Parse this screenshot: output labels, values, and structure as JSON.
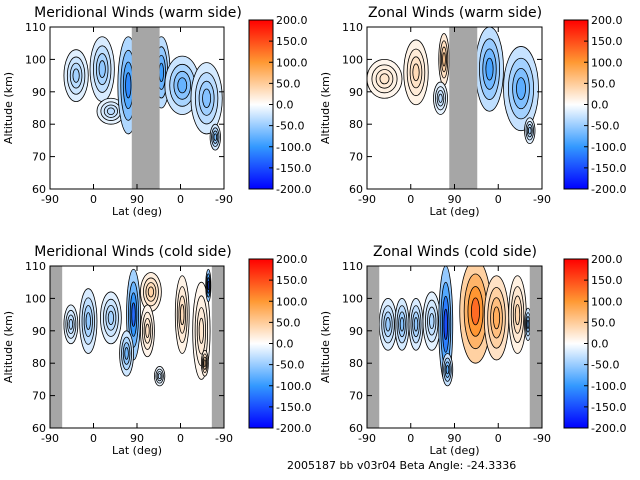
{
  "footer": "2005187 bb v03r04   Beta Angle: -24.3336",
  "colorbar": {
    "min": -200,
    "max": 200,
    "ticks": [
      "200.0",
      "150.0",
      "100.0",
      "50.0",
      "0.0",
      "-50.0",
      "-100.0",
      "-150.0",
      "-200.0"
    ],
    "colors": {
      "negative_end": "#0000ff",
      "negative_mid": "#3399ff",
      "near_zero": "#ffffff",
      "positive_mid": "#ff9933",
      "positive_end": "#ff0000",
      "gap": "#a6a6a6"
    }
  },
  "chart_data": [
    {
      "type": "heatmap",
      "title": "Meridional Winds (warm side)",
      "xlabel": "Lat (deg)",
      "ylabel": "Altitude (km)",
      "xticks": [
        "-90",
        "0",
        "90",
        "0",
        "-90"
      ],
      "yticks": [
        "60",
        "70",
        "80",
        "90",
        "100",
        "110"
      ],
      "ylim": [
        60,
        110
      ],
      "gaps": [
        [
          0.47,
          0.63
        ]
      ],
      "blobs": [
        {
          "x": 0.15,
          "alt": 95,
          "value": -45,
          "w": 0.07,
          "h": 8
        },
        {
          "x": 0.3,
          "alt": 97,
          "value": -55,
          "w": 0.07,
          "h": 10
        },
        {
          "x": 0.35,
          "alt": 84,
          "value": -35,
          "w": 0.08,
          "h": 4
        },
        {
          "x": 0.45,
          "alt": 92,
          "value": -110,
          "w": 0.06,
          "h": 15
        },
        {
          "x": 0.64,
          "alt": 96,
          "value": -95,
          "w": 0.05,
          "h": 11
        },
        {
          "x": 0.76,
          "alt": 92,
          "value": -75,
          "w": 0.1,
          "h": 9
        },
        {
          "x": 0.9,
          "alt": 88,
          "value": -60,
          "w": 0.09,
          "h": 11
        },
        {
          "x": 0.95,
          "alt": 76,
          "value": -65,
          "w": 0.03,
          "h": 4
        }
      ]
    },
    {
      "type": "heatmap",
      "title": "Zonal Winds (warm side)",
      "xlabel": "Lat (deg)",
      "ylabel": "Altitude (km)",
      "xticks": [
        "-90",
        "0",
        "90",
        "0",
        "-90"
      ],
      "yticks": [
        "60",
        "70",
        "80",
        "90",
        "100",
        "110"
      ],
      "ylim": [
        60,
        110
      ],
      "gaps": [
        [
          0.47,
          0.63
        ]
      ],
      "blobs": [
        {
          "x": 0.1,
          "alt": 94,
          "value": 25,
          "w": 0.1,
          "h": 6
        },
        {
          "x": 0.28,
          "alt": 96,
          "value": 35,
          "w": 0.07,
          "h": 10
        },
        {
          "x": 0.44,
          "alt": 100,
          "value": 55,
          "w": 0.03,
          "h": 8
        },
        {
          "x": 0.42,
          "alt": 88,
          "value": -35,
          "w": 0.04,
          "h": 5
        },
        {
          "x": 0.7,
          "alt": 97,
          "value": -90,
          "w": 0.08,
          "h": 13
        },
        {
          "x": 0.88,
          "alt": 91,
          "value": -80,
          "w": 0.1,
          "h": 13
        },
        {
          "x": 0.93,
          "alt": 78,
          "value": -45,
          "w": 0.03,
          "h": 4
        }
      ]
    },
    {
      "type": "heatmap",
      "title": "Meridional Winds (cold side)",
      "xlabel": "Lat (deg)",
      "ylabel": "Altitude (km)",
      "xticks": [
        "-90",
        "0",
        "90",
        "0",
        "-90"
      ],
      "yticks": [
        "60",
        "70",
        "80",
        "90",
        "100",
        "110"
      ],
      "ylim": [
        60,
        110
      ],
      "gaps": [
        [
          0.0,
          0.07
        ],
        [
          0.93,
          1.0
        ]
      ],
      "blobs": [
        {
          "x": 0.12,
          "alt": 92,
          "value": -40,
          "w": 0.04,
          "h": 6
        },
        {
          "x": 0.22,
          "alt": 93,
          "value": -55,
          "w": 0.05,
          "h": 10
        },
        {
          "x": 0.35,
          "alt": 94,
          "value": -45,
          "w": 0.06,
          "h": 8
        },
        {
          "x": 0.48,
          "alt": 95,
          "value": -130,
          "w": 0.04,
          "h": 14
        },
        {
          "x": 0.44,
          "alt": 83,
          "value": -70,
          "w": 0.04,
          "h": 7
        },
        {
          "x": 0.58,
          "alt": 102,
          "value": 45,
          "w": 0.06,
          "h": 6
        },
        {
          "x": 0.56,
          "alt": 90,
          "value": 30,
          "w": 0.04,
          "h": 8
        },
        {
          "x": 0.76,
          "alt": 95,
          "value": 35,
          "w": 0.04,
          "h": 12
        },
        {
          "x": 0.87,
          "alt": 90,
          "value": 25,
          "w": 0.05,
          "h": 15
        },
        {
          "x": 0.89,
          "alt": 80,
          "value": 45,
          "w": 0.02,
          "h": 4
        },
        {
          "x": 0.91,
          "alt": 104,
          "value": -150,
          "w": 0.015,
          "h": 5
        },
        {
          "x": 0.63,
          "alt": 76,
          "value": -30,
          "w": 0.03,
          "h": 3
        }
      ]
    },
    {
      "type": "heatmap",
      "title": "Zonal Winds (cold side)",
      "xlabel": "Lat (deg)",
      "ylabel": "Altitude (km)",
      "xticks": [
        "-90",
        "0",
        "90",
        "0",
        "-90"
      ],
      "yticks": [
        "60",
        "70",
        "80",
        "90",
        "100",
        "110"
      ],
      "ylim": [
        60,
        110
      ],
      "gaps": [
        [
          0.0,
          0.07
        ],
        [
          0.93,
          1.0
        ]
      ],
      "blobs": [
        {
          "x": 0.12,
          "alt": 92,
          "value": -50,
          "w": 0.05,
          "h": 8
        },
        {
          "x": 0.2,
          "alt": 92,
          "value": -60,
          "w": 0.04,
          "h": 8
        },
        {
          "x": 0.28,
          "alt": 92,
          "value": -55,
          "w": 0.04,
          "h": 8
        },
        {
          "x": 0.37,
          "alt": 93,
          "value": -40,
          "w": 0.05,
          "h": 9
        },
        {
          "x": 0.45,
          "alt": 92,
          "value": -150,
          "w": 0.04,
          "h": 18
        },
        {
          "x": 0.46,
          "alt": 78,
          "value": -80,
          "w": 0.03,
          "h": 5
        },
        {
          "x": 0.62,
          "alt": 96,
          "value": 130,
          "w": 0.09,
          "h": 16
        },
        {
          "x": 0.74,
          "alt": 94,
          "value": 80,
          "w": 0.07,
          "h": 13
        },
        {
          "x": 0.86,
          "alt": 95,
          "value": 40,
          "w": 0.05,
          "h": 12
        },
        {
          "x": 0.92,
          "alt": 92,
          "value": -70,
          "w": 0.02,
          "h": 5
        }
      ]
    }
  ]
}
